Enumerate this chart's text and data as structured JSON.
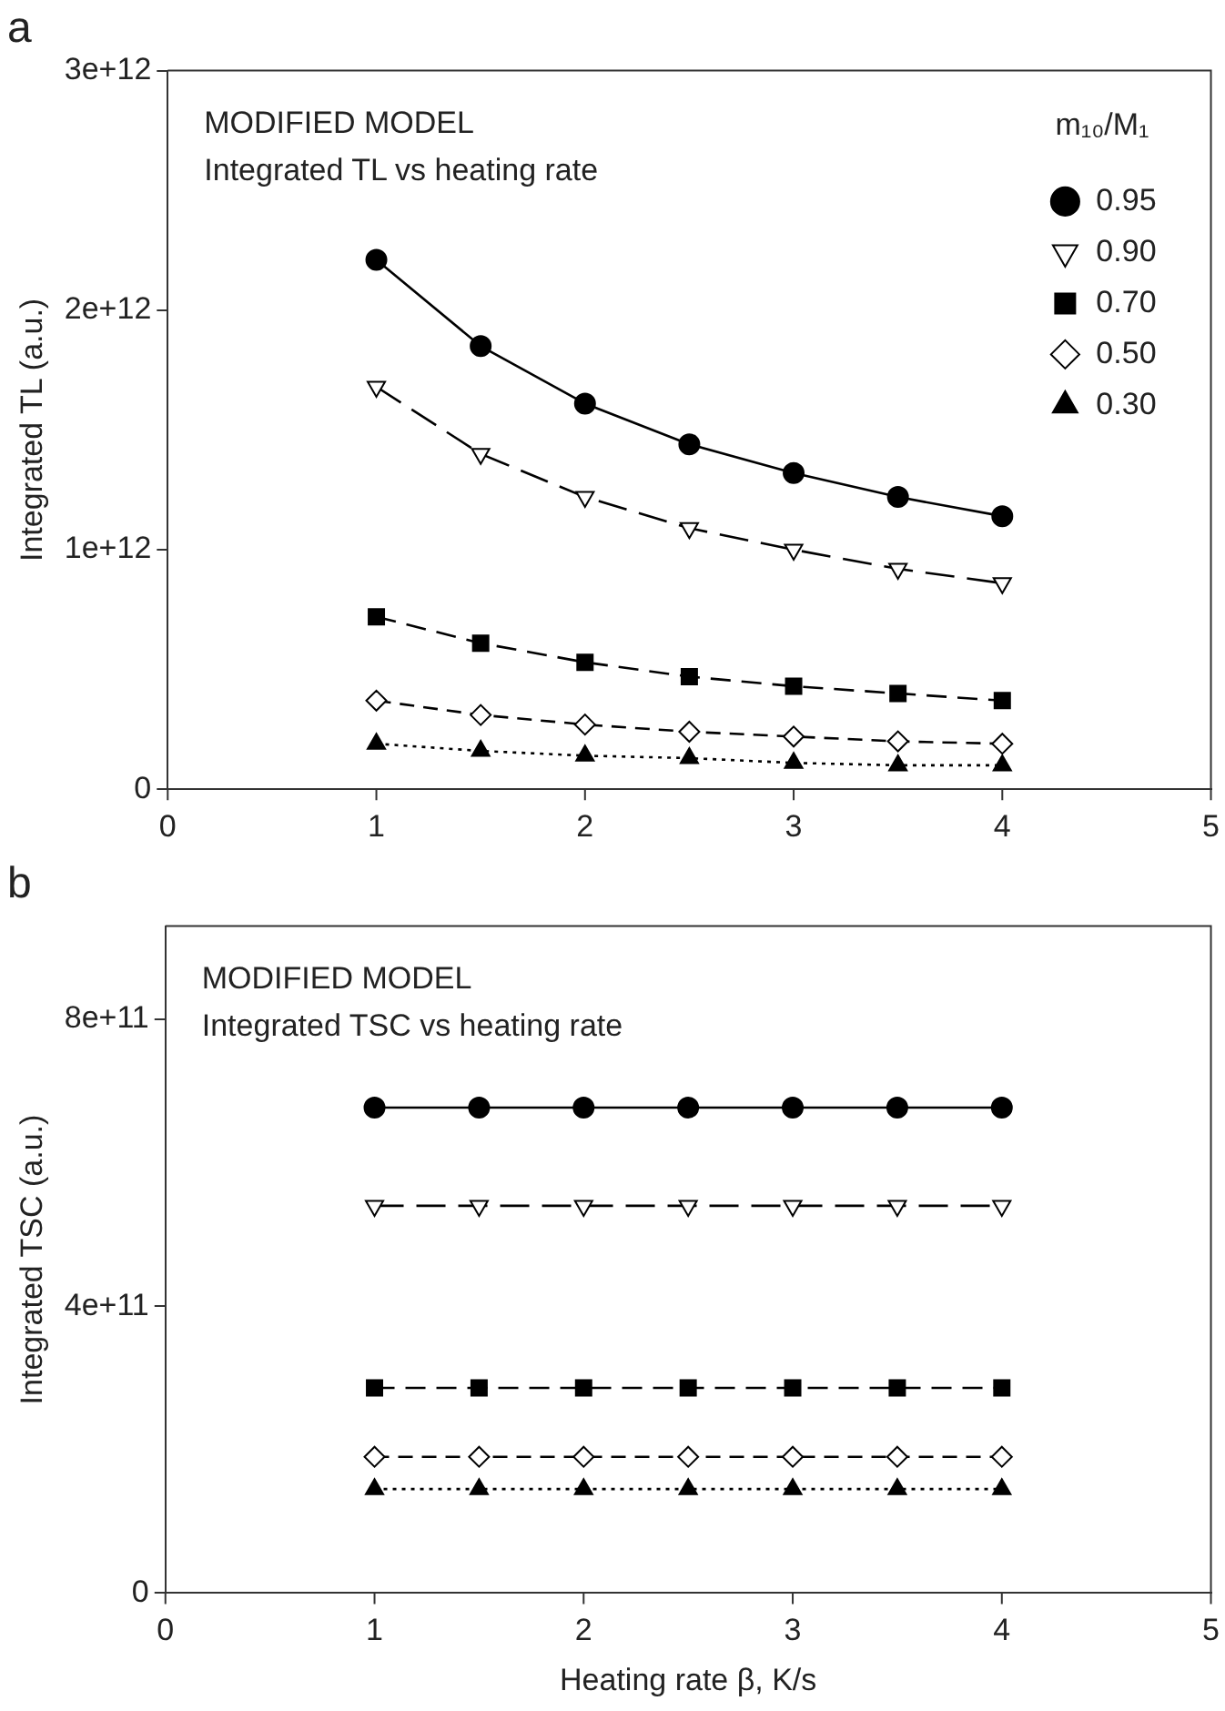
{
  "chart_data": [
    {
      "type": "line",
      "title": "a",
      "ylabel": "Integrated TL (a.u.)",
      "legend_title": "m₁₀/M₁",
      "legend": "top right",
      "annotations": [
        "MODIFIED MODEL",
        "Integrated TL vs heating rate"
      ],
      "x": [
        1,
        1.5,
        2,
        2.5,
        3,
        3.5,
        4
      ],
      "xlim": [
        0,
        5
      ],
      "xticks": [
        0,
        1,
        2,
        3,
        4,
        5
      ],
      "ylim": [
        0,
        3000000000000.0
      ],
      "yticks": [
        0,
        {
          "value": 1000000000000.0,
          "label": "1e+12"
        },
        {
          "value": 2000000000000.0,
          "label": "2e+12"
        },
        {
          "value": 3000000000000.0,
          "label": "3e+12"
        }
      ],
      "grid": false,
      "series": [
        {
          "name": "0.95",
          "color": "#000000",
          "marker": "circle",
          "line_style": "solid",
          "values": [
            2210000000000.0,
            1850000000000.0,
            1610000000000.0,
            1440000000000.0,
            1320000000000.0,
            1220000000000.0,
            1140000000000.0
          ]
        },
        {
          "name": "0.90",
          "color": "#000000",
          "marker": "triangle",
          "line_style": "dashed",
          "values": [
            1680000000000.0,
            1400000000000.0,
            1220000000000.0,
            1090000000000.0,
            1000000000000.0,
            920000000000.0,
            860000000000.0
          ]
        },
        {
          "name": "0.70",
          "color": "#000000",
          "marker": "square",
          "line_style": "dashed",
          "values": [
            720000000000.0,
            610000000000.0,
            530000000000.0,
            470000000000.0,
            430000000000.0,
            400000000000.0,
            370000000000.0
          ]
        },
        {
          "name": "0.50",
          "color": "#000000",
          "marker": "diamond",
          "line_style": "dashed",
          "values": [
            370000000000.0,
            310000000000.0,
            270000000000.0,
            240000000000.0,
            220000000000.0,
            200000000000.0,
            190000000000.0
          ]
        },
        {
          "name": "0.30",
          "color": "#000000",
          "marker": "triangle",
          "line_style": "dotted",
          "values": [
            190000000000.0,
            160000000000.0,
            140000000000.0,
            130000000000.0,
            110000000000.0,
            100000000000.0,
            100000000000.0
          ]
        }
      ]
    },
    {
      "type": "line",
      "title": "b",
      "xlabel": "Heating rate β, K/s",
      "ylabel": "Integrated TSC (a.u.)",
      "legend": false,
      "annotations": [
        "MODIFIED MODEL",
        "Integrated TSC vs heating rate"
      ],
      "x": [
        1,
        1.5,
        2,
        2.5,
        3,
        3.5,
        4
      ],
      "xlim": [
        0,
        5
      ],
      "xticks": [
        0,
        1,
        2,
        3,
        4,
        5
      ],
      "ylim": [
        0,
        930000000000.0
      ],
      "yticks": [
        0,
        {
          "value": 400000000000.0,
          "label": "4e+11"
        },
        {
          "value": 800000000000.0,
          "label": "8e+11"
        }
      ],
      "grid": false,
      "series": [
        {
          "color": "#000000",
          "marker": "circle",
          "line_style": "solid",
          "values": [
            677000000000.0,
            677000000000.0,
            677000000000.0,
            677000000000.0,
            677000000000.0,
            677000000000.0,
            677000000000.0
          ]
        },
        {
          "color": "#000000",
          "marker": "triangle",
          "line_style": "dashed",
          "values": [
            540000000000.0,
            540000000000.0,
            540000000000.0,
            540000000000.0,
            540000000000.0,
            540000000000.0,
            540000000000.0
          ]
        },
        {
          "color": "#000000",
          "marker": "square",
          "line_style": "dashed",
          "values": [
            286000000000.0,
            286000000000.0,
            286000000000.0,
            286000000000.0,
            286000000000.0,
            286000000000.0,
            286000000000.0
          ]
        },
        {
          "color": "#000000",
          "marker": "diamond",
          "line_style": "dashed",
          "values": [
            190000000000.0,
            190000000000.0,
            190000000000.0,
            190000000000.0,
            190000000000.0,
            190000000000.0,
            190000000000.0
          ]
        },
        {
          "color": "#000000",
          "marker": "triangle",
          "line_style": "dotted",
          "values": [
            145000000000.0,
            145000000000.0,
            145000000000.0,
            145000000000.0,
            145000000000.0,
            145000000000.0,
            145000000000.0
          ]
        }
      ]
    }
  ]
}
